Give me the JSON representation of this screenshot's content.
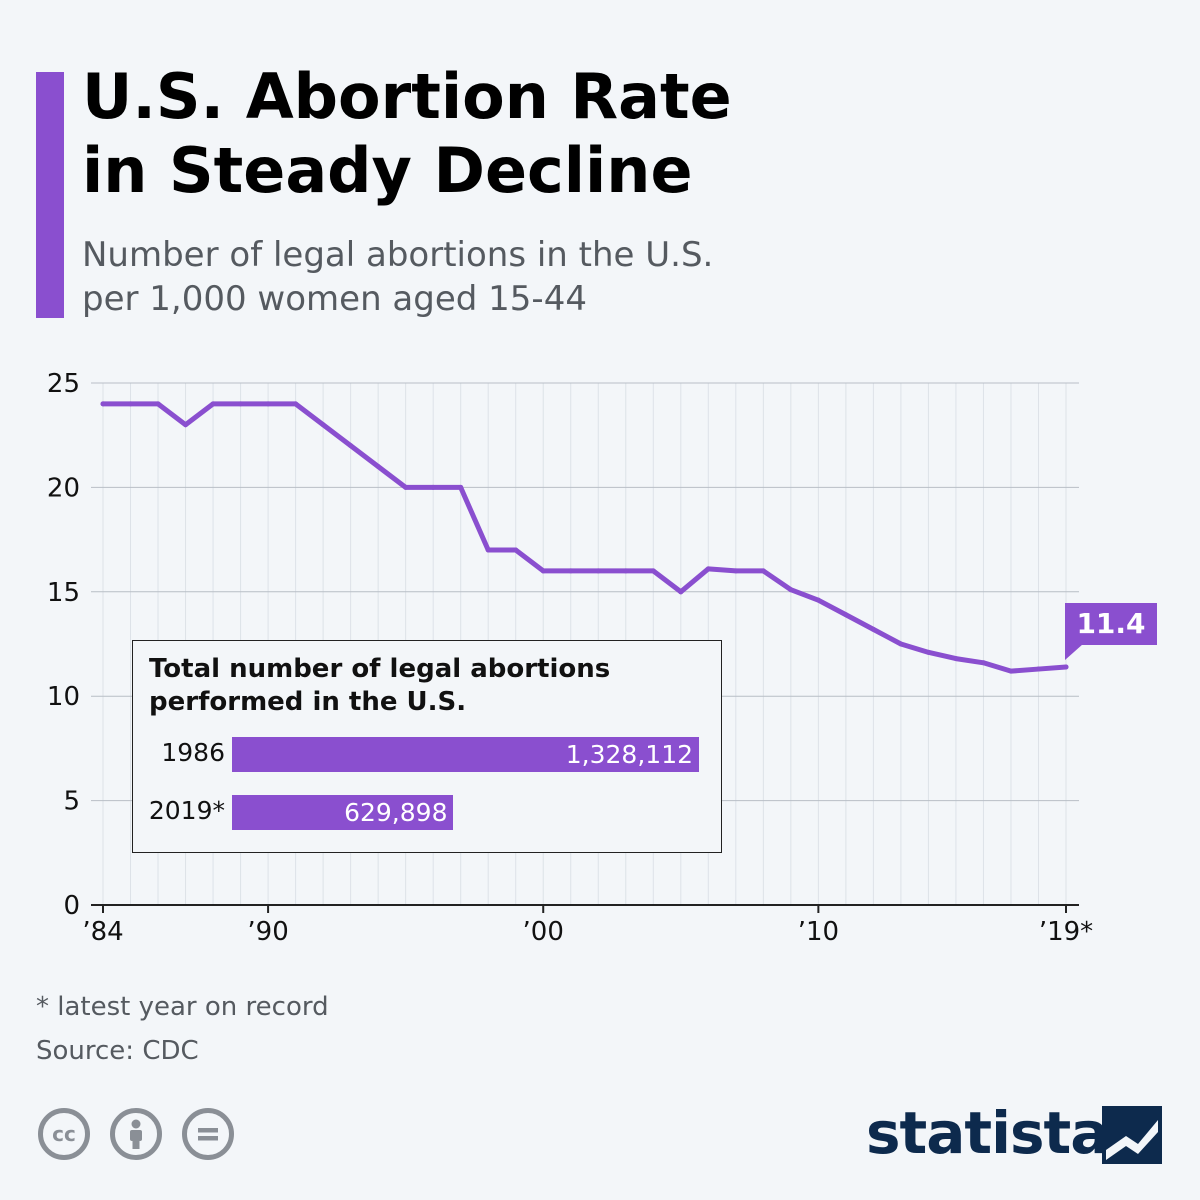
{
  "header": {
    "title_line1": "U.S. Abortion Rate",
    "title_line2": "in Steady Decline",
    "subtitle_line1": "Number of legal abortions in the U.S.",
    "subtitle_line2": "per 1,000 women aged 15-44"
  },
  "chart_data": {
    "type": "line",
    "title": "U.S. Abortion Rate in Steady Decline",
    "subtitle": "Number of legal abortions in the U.S. per 1,000 women aged 15-44",
    "x": [
      1984,
      1985,
      1986,
      1987,
      1988,
      1989,
      1990,
      1991,
      1992,
      1993,
      1994,
      1995,
      1996,
      1997,
      1998,
      1999,
      2000,
      2001,
      2002,
      2003,
      2004,
      2005,
      2006,
      2007,
      2008,
      2009,
      2010,
      2011,
      2012,
      2013,
      2014,
      2015,
      2016,
      2017,
      2018,
      2019
    ],
    "series": [
      {
        "values": [
          24,
          24,
          24,
          23,
          24,
          24,
          24,
          24,
          23,
          22,
          21,
          20,
          20,
          20,
          17,
          17,
          16,
          16,
          16,
          16,
          16,
          15,
          16.1,
          16,
          16,
          15.1,
          14.6,
          13.9,
          13.2,
          12.5,
          12.1,
          11.8,
          11.6,
          11.2,
          11.3,
          11.4
        ]
      }
    ],
    "x_tick_labels": [
      "’84",
      "’90",
      "’00",
      "’10",
      "’19*"
    ],
    "x_tick_years": [
      1984,
      1990,
      2000,
      2010,
      2019
    ],
    "y_ticks": [
      0,
      5,
      10,
      15,
      20,
      25
    ],
    "ylim": [
      0,
      25
    ],
    "xlim": [
      1984,
      2019
    ],
    "grid": true,
    "line_color": "#8a4fcf",
    "last_value_label": "11.4"
  },
  "inset": {
    "title_line1": "Total number of legal abortions",
    "title_line2": "performed in the U.S.",
    "rows": [
      {
        "year": "1986",
        "value": 1328112,
        "label": "1,328,112"
      },
      {
        "year": "2019*",
        "value": 629898,
        "label": "629,898"
      }
    ]
  },
  "footer": {
    "footnote": "* latest year on record",
    "source": "Source: CDC",
    "license_icons": [
      "creative-commons-icon",
      "attribution-icon",
      "no-derivatives-icon"
    ],
    "brand": "statista"
  },
  "colors": {
    "accent": "#8a4fcf",
    "background": "#f3f6f9",
    "brand": "#0d2a4d",
    "muted_text": "#555a60"
  }
}
